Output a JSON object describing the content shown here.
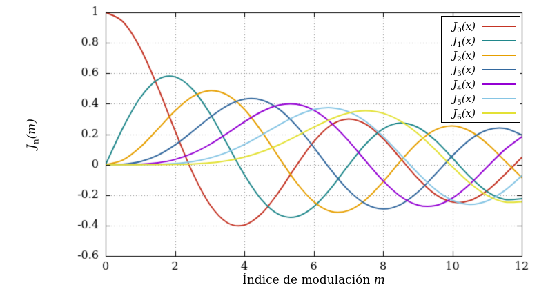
{
  "chart_data": {
    "type": "line",
    "title": "",
    "xlabel": {
      "text": "Índice de modulación ",
      "var": "m"
    },
    "ylabel": {
      "base": "J",
      "sub": "n",
      "arg": "(m)"
    },
    "xlim": [
      0,
      12
    ],
    "ylim": [
      -0.6,
      1
    ],
    "xticks": {
      "values": [
        0,
        2,
        4,
        6,
        8,
        10,
        12
      ],
      "labels": [
        "0",
        "2",
        "4",
        "6",
        "8",
        "10",
        "12"
      ]
    },
    "yticks": {
      "values": [
        -0.6,
        -0.4,
        -0.2,
        0,
        0.2,
        0.4,
        0.6,
        0.8,
        1
      ],
      "labels": [
        "-0.6",
        "-0.4",
        "-0.2",
        "0",
        "0.2",
        "0.4",
        "0.6",
        "0.8",
        "1"
      ]
    },
    "grid": "dotted",
    "legend_position": "top-right-inside",
    "x": [
      0,
      0.5,
      1,
      1.5,
      2,
      2.5,
      3,
      3.5,
      4,
      4.5,
      5,
      5.5,
      6,
      6.5,
      7,
      7.5,
      8,
      8.5,
      9,
      9.5,
      10,
      10.5,
      11,
      11.5,
      12
    ],
    "series": [
      {
        "name": "J0(x)",
        "label": {
          "base": "J",
          "sub": "0",
          "arg": "(x)"
        },
        "color": "#c43425",
        "values": [
          1.0,
          0.9385,
          0.7652,
          0.5118,
          0.2239,
          -0.0484,
          -0.2601,
          -0.3801,
          -0.3971,
          -0.3205,
          -0.1776,
          -0.0068,
          0.1506,
          0.2601,
          0.3001,
          0.2663,
          0.1717,
          0.0419,
          -0.0903,
          -0.1939,
          -0.2459,
          -0.2366,
          -0.1712,
          -0.0677,
          0.0477
        ]
      },
      {
        "name": "J1(x)",
        "label": {
          "base": "J",
          "sub": "1",
          "arg": "(x)"
        },
        "color": "#20878b",
        "values": [
          0,
          0.2423,
          0.4401,
          0.5579,
          0.5767,
          0.4971,
          0.3391,
          0.1374,
          -0.066,
          -0.2311,
          -0.3276,
          -0.3414,
          -0.2767,
          -0.1538,
          -0.0047,
          0.1352,
          0.2346,
          0.2731,
          0.2453,
          0.1613,
          0.0435,
          -0.0789,
          -0.1768,
          -0.2284,
          -0.2234
        ]
      },
      {
        "name": "J2(x)",
        "label": {
          "base": "J",
          "sub": "2",
          "arg": "(x)"
        },
        "color": "#e69f00",
        "values": [
          0,
          0.0306,
          0.1149,
          0.2321,
          0.3528,
          0.4461,
          0.4861,
          0.4586,
          0.3641,
          0.2178,
          0.0466,
          -0.1173,
          -0.2429,
          -0.3074,
          -0.3014,
          -0.2303,
          -0.113,
          0.0223,
          0.1448,
          0.2279,
          0.2546,
          0.2216,
          0.139,
          0.0279,
          -0.0849
        ]
      },
      {
        "name": "J3(x)",
        "label": {
          "base": "J",
          "sub": "3",
          "arg": "(x)"
        },
        "color": "#33689e",
        "values": [
          0,
          0.0026,
          0.0196,
          0.061,
          0.1289,
          0.2166,
          0.3091,
          0.3868,
          0.4302,
          0.4247,
          0.3648,
          0.2561,
          0.1148,
          -0.0353,
          -0.1676,
          -0.2581,
          -0.2911,
          -0.2626,
          -0.1809,
          -0.0653,
          0.0584,
          0.1633,
          0.2273,
          0.2381,
          0.1951
        ]
      },
      {
        "name": "J4(x)",
        "label": {
          "base": "J",
          "sub": "4",
          "arg": "(x)"
        },
        "color": "#9400d3",
        "values": [
          0,
          0.0002,
          0.0025,
          0.0118,
          0.034,
          0.0738,
          0.132,
          0.2044,
          0.2811,
          0.3484,
          0.3912,
          0.3967,
          0.3576,
          0.2748,
          0.1578,
          0.0238,
          -0.1054,
          -0.2077,
          -0.2655,
          -0.2691,
          -0.2196,
          -0.1283,
          -0.015,
          0.0963,
          0.1825
        ]
      },
      {
        "name": "J5(x)",
        "label": {
          "base": "J",
          "sub": "5",
          "arg": "(x)"
        },
        "color": "#86c5e4",
        "values": [
          0,
          0.0,
          0.0002,
          0.0018,
          0.007,
          0.0195,
          0.043,
          0.0804,
          0.1321,
          0.1947,
          0.2611,
          0.3209,
          0.3621,
          0.3736,
          0.3479,
          0.2836,
          0.1858,
          0.0671,
          -0.055,
          -0.1613,
          -0.2341,
          -0.2611,
          -0.2383,
          -0.1711,
          -0.0735
        ]
      },
      {
        "name": "J6(x)",
        "label": {
          "base": "J",
          "sub": "6",
          "arg": "(x)"
        },
        "color": "#e3e135",
        "values": [
          0,
          0.0,
          0.0,
          0.0002,
          0.0012,
          0.0042,
          0.0114,
          0.0254,
          0.0491,
          0.0843,
          0.131,
          0.1868,
          0.2458,
          0.2999,
          0.3392,
          0.3541,
          0.3376,
          0.2867,
          0.2043,
          0.0993,
          -0.0145,
          -0.1203,
          -0.2016,
          -0.2453,
          -0.2437
        ]
      }
    ]
  }
}
